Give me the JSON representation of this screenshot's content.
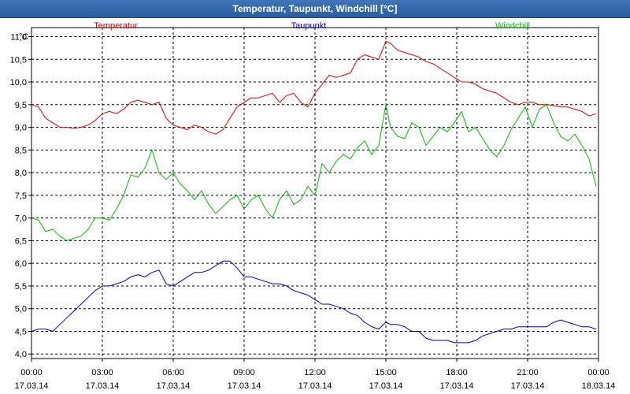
{
  "window": {
    "title": "Temperatur, Taupunkt, Windchill [°C]"
  },
  "colors": {
    "Temperatur": "#dd0000",
    "Taupunkt": "#0000bb",
    "Windchill": "#00bb00",
    "axis": "#000000",
    "grid": "#000000"
  },
  "chart_data": {
    "type": "line",
    "title": "Temperatur, Taupunkt, Windchill [°C]",
    "ylabel": "°C",
    "xlabel": "",
    "ylim": [
      3.9,
      11.2
    ],
    "xlim": [
      0,
      24
    ],
    "grid": true,
    "legend": "top",
    "yticks": [
      "4,0",
      "4,5",
      "5,0",
      "5,5",
      "6,0",
      "6,5",
      "7,0",
      "7,5",
      "8,0",
      "8,5",
      "9,0",
      "9,5",
      "10,0",
      "10,5",
      "11,0"
    ],
    "xticks": [
      {
        "time": "00:00",
        "date": "17.03.14"
      },
      {
        "time": "03:00",
        "date": "17.03.14"
      },
      {
        "time": "06:00",
        "date": "17.03.14"
      },
      {
        "time": "09:00",
        "date": "17.03.14"
      },
      {
        "time": "12:00",
        "date": "17.03.14"
      },
      {
        "time": "15:00",
        "date": "17.03.14"
      },
      {
        "time": "18:00",
        "date": "17.03.14"
      },
      {
        "time": "21:00",
        "date": "17.03.14"
      },
      {
        "time": "00:00",
        "date": "18.03.14"
      }
    ],
    "series": [
      {
        "name": "Temperatur",
        "x": [
          0,
          0.3,
          0.6,
          0.9,
          1.2,
          1.5,
          1.8,
          2.1,
          2.4,
          2.7,
          3.0,
          3.3,
          3.6,
          3.9,
          4.2,
          4.5,
          4.8,
          5.1,
          5.4,
          5.7,
          6.0,
          6.3,
          6.6,
          6.9,
          7.2,
          7.5,
          7.8,
          8.1,
          8.4,
          8.7,
          9.0,
          9.3,
          9.6,
          9.9,
          10.2,
          10.5,
          10.8,
          11.1,
          11.4,
          11.7,
          12.0,
          12.3,
          12.6,
          12.9,
          13.2,
          13.5,
          13.8,
          14.1,
          14.4,
          14.7,
          15.0,
          15.2,
          15.5,
          15.8,
          16.1,
          16.4,
          16.7,
          17.0,
          17.3,
          17.6,
          17.9,
          18.2,
          18.5,
          18.8,
          19.1,
          19.4,
          19.7,
          20.0,
          20.3,
          20.6,
          20.9,
          21.2,
          21.5,
          21.8,
          22.1,
          22.4,
          22.7,
          23.0,
          23.3,
          23.6,
          23.9
        ],
        "y": [
          9.5,
          9.45,
          9.2,
          9.1,
          9.0,
          9.0,
          8.98,
          9.0,
          9.05,
          9.15,
          9.3,
          9.35,
          9.3,
          9.4,
          9.55,
          9.6,
          9.55,
          9.5,
          9.55,
          9.2,
          9.05,
          9.0,
          8.95,
          9.05,
          9.0,
          8.9,
          8.85,
          8.95,
          9.2,
          9.45,
          9.55,
          9.65,
          9.65,
          9.7,
          9.75,
          9.55,
          9.7,
          9.75,
          9.55,
          9.45,
          9.75,
          9.95,
          10.15,
          10.1,
          10.15,
          10.2,
          10.5,
          10.6,
          10.55,
          10.5,
          10.9,
          10.85,
          10.7,
          10.65,
          10.6,
          10.55,
          10.45,
          10.4,
          10.3,
          10.2,
          10.1,
          10.0,
          10.0,
          9.95,
          9.85,
          9.8,
          9.75,
          9.65,
          9.55,
          9.5,
          9.55,
          9.55,
          9.5,
          9.5,
          9.48,
          9.45,
          9.45,
          9.4,
          9.35,
          9.25,
          9.3
        ]
      },
      {
        "name": "Taupunkt",
        "x": [
          0,
          0.3,
          0.6,
          0.9,
          1.2,
          1.5,
          1.8,
          2.1,
          2.4,
          2.7,
          3.0,
          3.3,
          3.6,
          3.9,
          4.2,
          4.5,
          4.8,
          5.1,
          5.4,
          5.7,
          6.0,
          6.3,
          6.6,
          6.9,
          7.2,
          7.5,
          7.8,
          8.1,
          8.4,
          8.7,
          9.0,
          9.3,
          9.6,
          9.9,
          10.2,
          10.5,
          10.8,
          11.1,
          11.4,
          11.7,
          12.0,
          12.3,
          12.6,
          12.9,
          13.2,
          13.5,
          13.8,
          14.1,
          14.4,
          14.7,
          15.0,
          15.2,
          15.5,
          15.8,
          16.1,
          16.4,
          16.7,
          17.0,
          17.3,
          17.6,
          17.9,
          18.2,
          18.5,
          18.8,
          19.1,
          19.4,
          19.7,
          20.0,
          20.3,
          20.6,
          20.9,
          21.2,
          21.5,
          21.8,
          22.1,
          22.4,
          22.7,
          23.0,
          23.3,
          23.6,
          23.9
        ],
        "y": [
          4.5,
          4.55,
          4.55,
          4.5,
          4.65,
          4.8,
          4.95,
          5.1,
          5.25,
          5.4,
          5.5,
          5.5,
          5.55,
          5.6,
          5.7,
          5.75,
          5.7,
          5.8,
          5.85,
          5.55,
          5.5,
          5.6,
          5.7,
          5.8,
          5.8,
          5.85,
          5.95,
          6.05,
          6.05,
          5.9,
          5.7,
          5.7,
          5.65,
          5.6,
          5.55,
          5.55,
          5.5,
          5.4,
          5.35,
          5.3,
          5.2,
          5.1,
          5.1,
          5.05,
          5.0,
          4.9,
          4.85,
          4.7,
          4.6,
          4.55,
          4.7,
          4.65,
          4.65,
          4.6,
          4.5,
          4.5,
          4.35,
          4.3,
          4.3,
          4.3,
          4.25,
          4.25,
          4.25,
          4.3,
          4.4,
          4.45,
          4.5,
          4.55,
          4.55,
          4.6,
          4.6,
          4.6,
          4.6,
          4.6,
          4.7,
          4.75,
          4.7,
          4.65,
          4.6,
          4.6,
          4.55
        ]
      },
      {
        "name": "Windchill",
        "x": [
          0,
          0.3,
          0.6,
          0.9,
          1.2,
          1.5,
          1.8,
          2.1,
          2.4,
          2.7,
          3.0,
          3.3,
          3.6,
          3.9,
          4.2,
          4.5,
          4.8,
          5.1,
          5.4,
          5.7,
          6.0,
          6.3,
          6.6,
          6.9,
          7.2,
          7.5,
          7.8,
          8.1,
          8.4,
          8.7,
          9.0,
          9.3,
          9.6,
          9.9,
          10.2,
          10.5,
          10.8,
          11.1,
          11.4,
          11.7,
          12.0,
          12.3,
          12.6,
          12.9,
          13.2,
          13.5,
          13.8,
          14.1,
          14.4,
          14.7,
          15.0,
          15.2,
          15.5,
          15.8,
          16.1,
          16.4,
          16.7,
          17.0,
          17.3,
          17.6,
          17.9,
          18.2,
          18.5,
          18.8,
          19.1,
          19.4,
          19.7,
          20.0,
          20.3,
          20.6,
          20.9,
          21.2,
          21.5,
          21.8,
          22.1,
          22.4,
          22.7,
          23.0,
          23.3,
          23.6,
          23.9
        ],
        "y": [
          7.0,
          6.95,
          6.7,
          6.75,
          6.6,
          6.5,
          6.55,
          6.6,
          6.75,
          7.0,
          7.0,
          6.95,
          7.2,
          7.5,
          7.95,
          7.9,
          8.1,
          8.5,
          8.0,
          7.85,
          8.0,
          7.75,
          7.6,
          7.4,
          7.6,
          7.3,
          7.1,
          7.25,
          7.4,
          7.5,
          7.2,
          7.4,
          7.5,
          7.2,
          7.0,
          7.4,
          7.6,
          7.3,
          7.4,
          7.7,
          7.5,
          8.2,
          8.0,
          8.25,
          8.4,
          8.3,
          8.55,
          8.7,
          8.4,
          8.6,
          9.5,
          9.0,
          8.8,
          8.75,
          9.1,
          9.0,
          8.6,
          8.8,
          9.0,
          8.9,
          9.1,
          9.35,
          8.9,
          9.0,
          8.75,
          8.5,
          8.35,
          8.6,
          8.95,
          9.2,
          9.45,
          9.0,
          9.4,
          9.5,
          9.1,
          8.8,
          8.7,
          8.85,
          8.6,
          8.3,
          7.7
        ]
      }
    ]
  }
}
